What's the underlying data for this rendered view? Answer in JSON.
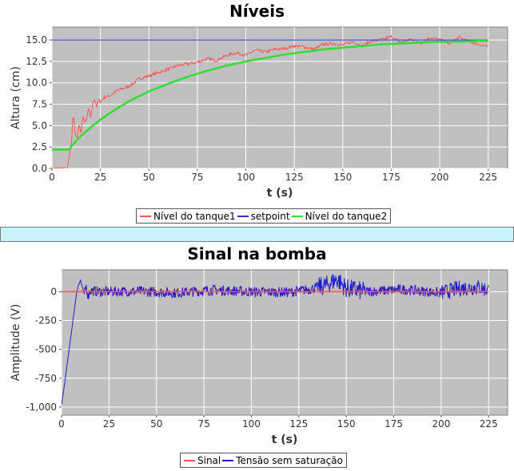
{
  "chart_data": [
    {
      "type": "line",
      "title": "Níveis",
      "xlabel": "t (s)",
      "ylabel": "Altura (cm)",
      "xlim": [
        0,
        235
      ],
      "ylim": [
        0,
        16.5
      ],
      "xticks": [
        0,
        25,
        50,
        75,
        100,
        125,
        150,
        175,
        200,
        225
      ],
      "yticks": [
        0.0,
        2.5,
        5.0,
        7.5,
        10.0,
        12.5,
        15.0
      ],
      "ytick_labels": [
        "0.0",
        "2.5",
        "5.0",
        "7.5",
        "10.0",
        "12.5",
        "15.0"
      ],
      "grid": true,
      "legend_position": "bottom",
      "series": [
        {
          "name": "Nível do tanque1",
          "color": "#ff5555",
          "x": [
            0,
            8,
            9,
            10,
            11,
            12,
            13,
            14,
            15,
            16,
            17,
            18,
            19,
            20,
            21,
            22,
            23,
            24,
            25,
            27,
            30,
            33,
            36,
            40,
            45,
            50,
            55,
            60,
            65,
            70,
            75,
            80,
            85,
            90,
            95,
            100,
            105,
            110,
            115,
            120,
            125,
            130,
            135,
            140,
            145,
            150,
            155,
            160,
            165,
            170,
            175,
            180,
            185,
            190,
            195,
            200,
            205,
            210,
            215,
            220,
            225
          ],
          "y": [
            0.0,
            0.1,
            1.5,
            3.0,
            6.5,
            4.0,
            3.5,
            5.0,
            4.2,
            6.3,
            5.2,
            6.0,
            7.0,
            5.8,
            7.5,
            8.2,
            7.2,
            8.0,
            7.8,
            8.3,
            8.5,
            9.0,
            9.3,
            9.6,
            10.5,
            10.8,
            11.2,
            11.6,
            12.0,
            12.2,
            12.4,
            12.8,
            12.6,
            13.2,
            13.5,
            13.2,
            13.8,
            13.6,
            13.9,
            14.0,
            14.3,
            14.2,
            13.9,
            14.5,
            14.6,
            14.4,
            14.8,
            14.3,
            14.9,
            15.0,
            15.4,
            14.7,
            15.1,
            14.6,
            15.3,
            15.0,
            14.6,
            15.3,
            14.8,
            14.5,
            14.2
          ]
        },
        {
          "name": "setpoint",
          "color": "#3333cc",
          "x": [
            0,
            225
          ],
          "y": [
            15.0,
            15.0
          ]
        },
        {
          "name": "Nível do tanque2",
          "color": "#33dd33",
          "x": [
            0,
            5,
            9,
            10,
            15,
            20,
            25,
            30,
            35,
            40,
            50,
            60,
            70,
            80,
            90,
            100,
            110,
            120,
            130,
            140,
            150,
            160,
            170,
            180,
            190,
            200,
            210,
            220,
            225
          ],
          "y": [
            2.2,
            2.2,
            2.2,
            2.6,
            3.8,
            4.8,
            5.7,
            6.5,
            7.2,
            7.9,
            9.0,
            9.9,
            10.7,
            11.4,
            12.0,
            12.5,
            12.9,
            13.3,
            13.6,
            13.9,
            14.1,
            14.3,
            14.5,
            14.6,
            14.7,
            14.8,
            14.8,
            14.9,
            14.9
          ]
        }
      ]
    },
    {
      "type": "line",
      "title": "Sinal na bomba",
      "xlabel": "t (s)",
      "ylabel": "Amplitude (V)",
      "xlim": [
        0,
        235
      ],
      "ylim": [
        -1070,
        190
      ],
      "xticks": [
        0,
        25,
        50,
        75,
        100,
        125,
        150,
        175,
        200,
        225
      ],
      "yticks": [
        -1000,
        -750,
        -500,
        -250,
        0
      ],
      "ytick_labels": [
        "-1,000",
        "-750",
        "-500",
        "-250",
        "0"
      ],
      "grid": true,
      "legend_position": "bottom",
      "series": [
        {
          "name": "Sinal",
          "color": "#ff5555",
          "x": [
            0,
            225
          ],
          "y": [
            0,
            0
          ]
        },
        {
          "name": "Tensão sem saturação",
          "color": "#1f1fcc",
          "x": [
            0,
            2,
            4,
            6,
            8,
            9,
            10,
            11,
            12,
            13,
            14,
            15,
            20,
            40,
            60,
            80,
            100,
            120,
            130,
            140,
            145,
            150,
            160,
            180,
            200,
            210,
            220,
            225
          ],
          "y": [
            -980,
            -750,
            -500,
            -250,
            0,
            60,
            100,
            40,
            -20,
            50,
            -40,
            10,
            0,
            5,
            -10,
            15,
            0,
            -5,
            20,
            60,
            110,
            30,
            0,
            20,
            -10,
            30,
            40,
            10
          ]
        }
      ]
    }
  ]
}
